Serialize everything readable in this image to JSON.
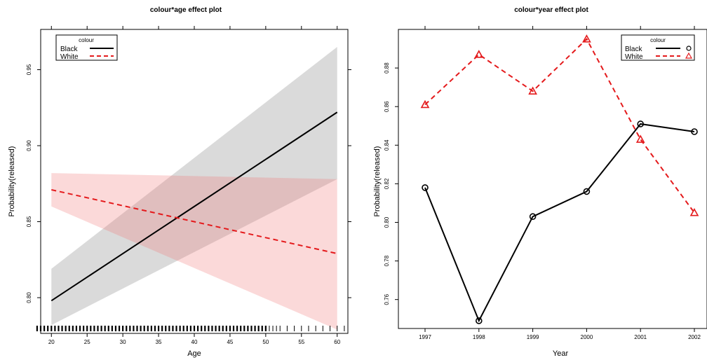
{
  "chart_data": [
    {
      "type": "line",
      "title": "colour*age effect plot",
      "xlabel": "Age",
      "ylabel": "Probability(released)",
      "xlim": [
        18.5,
        61.5
      ],
      "ylim": [
        0.7765,
        0.9765
      ],
      "x_ticks": [
        20,
        25,
        30,
        35,
        40,
        45,
        50,
        55,
        60
      ],
      "y_ticks": [
        0.8,
        0.85,
        0.9,
        0.95
      ],
      "y_tick_labels": [
        "0.80",
        "0.85",
        "0.90",
        "0.95"
      ],
      "grid": false,
      "legend": {
        "title": "colour",
        "position": "top-left"
      },
      "series": [
        {
          "name": "Black",
          "color": "#000000",
          "dash": "solid",
          "x": [
            20,
            60
          ],
          "y": [
            0.798,
            0.922
          ],
          "lower": [
            0.782,
            0.878
          ],
          "upper": [
            0.819,
            0.965
          ]
        },
        {
          "name": "White",
          "color": "#e41a1c",
          "dash": "dashed",
          "x": [
            20,
            60
          ],
          "y": [
            0.871,
            0.829
          ],
          "lower": [
            0.86,
            0.779
          ],
          "upper": [
            0.882,
            0.878
          ]
        }
      ],
      "rug": "age observations along the x axis (ages 18 to 61)"
    },
    {
      "type": "line",
      "title": "colour*year effect plot",
      "xlabel": "Year",
      "ylabel": "Probability(released)",
      "categories": [
        "1997",
        "1998",
        "1999",
        "2000",
        "2001",
        "2002"
      ],
      "ylim": [
        0.745,
        0.9
      ],
      "y_ticks": [
        0.76,
        0.78,
        0.8,
        0.82,
        0.84,
        0.86,
        0.88
      ],
      "y_tick_labels": [
        "0.76",
        "0.78",
        "0.80",
        "0.82",
        "0.84",
        "0.86",
        "0.88"
      ],
      "grid": false,
      "legend": {
        "title": "colour",
        "position": "top-right"
      },
      "series": [
        {
          "name": "Black",
          "color": "#000000",
          "dash": "solid",
          "marker": "circle",
          "values": [
            0.818,
            0.749,
            0.803,
            0.816,
            0.851,
            0.847
          ]
        },
        {
          "name": "White",
          "color": "#e41a1c",
          "dash": "dashed",
          "marker": "triangle",
          "values": [
            0.861,
            0.887,
            0.868,
            0.895,
            0.843,
            0.805
          ]
        }
      ]
    }
  ]
}
